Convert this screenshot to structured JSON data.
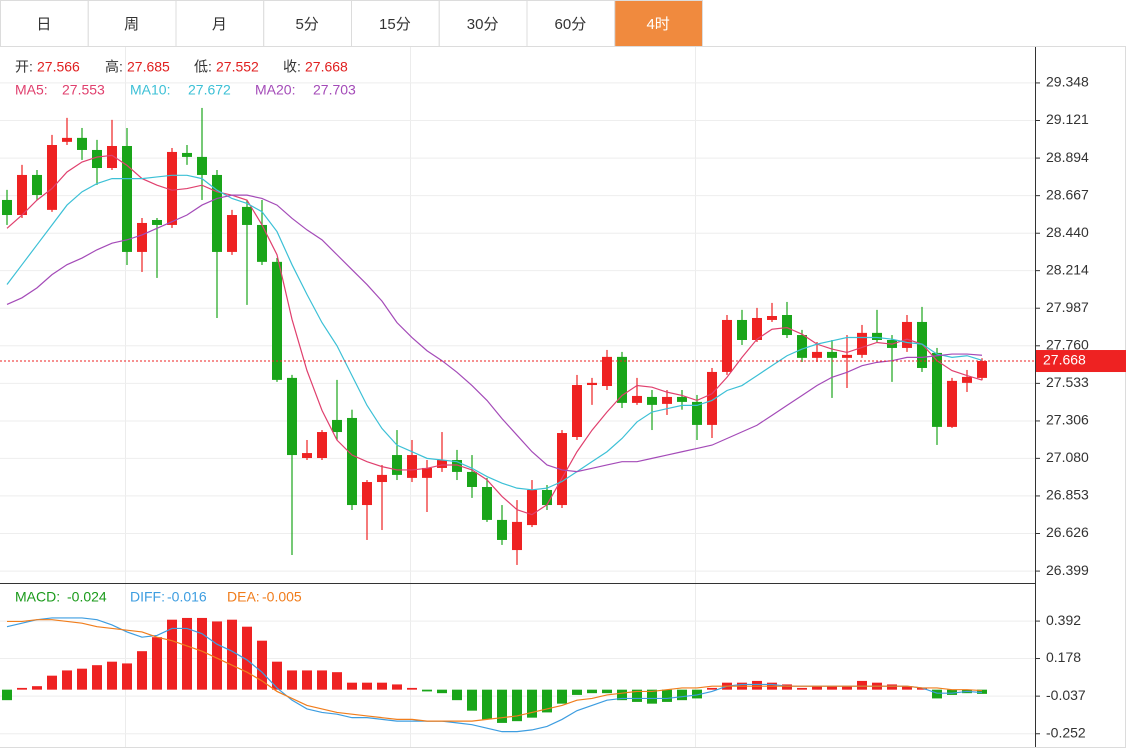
{
  "tabs": {
    "labels": [
      "日",
      "周",
      "月",
      "5分",
      "15分",
      "30分",
      "60分",
      "4时"
    ],
    "active": 7
  },
  "chart_data": {
    "type": "candlestick",
    "ohlc_labels": [
      "开:",
      "高:",
      "低:",
      "收:"
    ],
    "colors": {
      "up": "#ee2222",
      "down": "#1aa51a"
    },
    "open": [
      28.641,
      28.55,
      28.792,
      28.581,
      28.992,
      29.016,
      28.943,
      28.834,
      28.967,
      28.327,
      28.52,
      28.49,
      28.925,
      28.901,
      28.792,
      28.327,
      28.599,
      28.49,
      28.267,
      27.566,
      27.082,
      27.082,
      27.312,
      27.324,
      26.798,
      26.937,
      27.1,
      26.962,
      26.962,
      27.022,
      27.07,
      26.998,
      26.907,
      26.708,
      26.526,
      26.677,
      26.889,
      26.798,
      27.209,
      27.523,
      27.517,
      27.693,
      27.415,
      27.451,
      27.409,
      27.451,
      27.421,
      27.282,
      27.602,
      27.916,
      27.795,
      27.916,
      27.946,
      27.825,
      27.687,
      27.723,
      27.687,
      27.705,
      27.838,
      27.795,
      27.747,
      27.904,
      27.717,
      27.27,
      27.536,
      27.566
    ],
    "high": [
      28.702,
      28.853,
      28.822,
      29.034,
      29.137,
      29.076,
      29.004,
      29.125,
      29.076,
      28.532,
      28.532,
      28.955,
      28.973,
      29.197,
      28.822,
      28.581,
      28.641,
      28.641,
      28.291,
      27.584,
      27.191,
      27.251,
      27.554,
      27.374,
      26.949,
      27.04,
      27.251,
      27.191,
      27.07,
      27.239,
      27.131,
      27.1,
      26.962,
      26.798,
      26.828,
      26.949,
      26.919,
      27.251,
      27.584,
      27.566,
      27.735,
      27.723,
      27.566,
      27.493,
      27.493,
      27.493,
      27.463,
      27.626,
      27.946,
      27.977,
      27.989,
      28.019,
      28.025,
      27.856,
      27.783,
      27.795,
      27.825,
      27.886,
      27.977,
      27.825,
      27.946,
      27.995,
      27.747,
      27.566,
      27.614,
      27.685
    ],
    "low": [
      28.49,
      28.532,
      28.641,
      28.569,
      28.973,
      28.883,
      28.732,
      28.822,
      28.248,
      28.206,
      28.17,
      28.472,
      28.853,
      28.641,
      27.928,
      28.309,
      28.007,
      28.248,
      27.542,
      26.496,
      27.07,
      27.07,
      27.191,
      26.768,
      26.587,
      26.647,
      26.949,
      26.937,
      26.756,
      26.998,
      26.949,
      26.841,
      26.696,
      26.557,
      26.436,
      26.665,
      26.768,
      26.78,
      27.191,
      27.403,
      27.493,
      27.384,
      27.403,
      27.251,
      27.342,
      27.374,
      27.191,
      27.203,
      27.584,
      27.765,
      27.783,
      27.904,
      27.807,
      27.662,
      27.662,
      27.445,
      27.505,
      27.687,
      27.783,
      27.542,
      27.723,
      27.602,
      27.161,
      27.264,
      27.481,
      27.552
    ],
    "close": [
      28.55,
      28.792,
      28.671,
      28.973,
      29.016,
      28.943,
      28.834,
      28.967,
      28.327,
      28.502,
      28.49,
      28.931,
      28.901,
      28.792,
      28.327,
      28.55,
      28.49,
      28.267,
      27.554,
      27.1,
      27.112,
      27.239,
      27.239,
      26.798,
      26.937,
      26.98,
      26.98,
      27.1,
      27.022,
      27.07,
      26.998,
      26.907,
      26.708,
      26.587,
      26.696,
      26.889,
      26.798,
      27.233,
      27.523,
      27.536,
      27.693,
      27.415,
      27.457,
      27.403,
      27.451,
      27.421,
      27.282,
      27.602,
      27.916,
      27.795,
      27.928,
      27.94,
      27.825,
      27.687,
      27.723,
      27.687,
      27.705,
      27.838,
      27.795,
      27.747,
      27.904,
      27.626,
      27.27,
      27.548,
      27.572,
      27.668
    ],
    "ylim": [
      26.327,
      29.559
    ],
    "yticks": [
      26.399,
      26.626,
      26.853,
      {
        "value": 27.08,
        "label": "27.080"
      },
      27.306,
      27.533,
      {
        "value": 27.76,
        "label": "27.760"
      },
      27.987,
      28.214,
      {
        "value": 28.44,
        "label": "28.440"
      },
      28.667,
      28.894,
      29.121,
      29.348
    ],
    "grid": true,
    "ma": [
      {
        "name": "MA5:",
        "color": "#e0406e",
        "values": [
          28.47,
          28.55,
          28.64,
          28.71,
          28.81,
          28.87,
          28.9,
          28.91,
          28.85,
          28.77,
          28.73,
          28.7,
          28.71,
          28.73,
          28.69,
          28.67,
          28.64,
          28.49,
          28.31,
          27.92,
          27.61,
          27.37,
          27.19,
          27.1,
          27.06,
          27.03,
          27.01,
          27.01,
          27.02,
          27.04,
          27.04,
          27.01,
          26.95,
          26.85,
          26.77,
          26.74,
          26.8,
          26.96,
          27.12,
          27.25,
          27.36,
          27.46,
          27.52,
          27.51,
          27.48,
          27.46,
          27.43,
          27.47,
          27.57,
          27.69,
          27.8,
          27.86,
          27.87,
          27.83,
          27.77,
          27.74,
          27.72,
          27.75,
          27.78,
          27.77,
          27.8,
          27.77,
          27.67,
          27.61,
          27.58,
          27.553
        ]
      },
      {
        "name": "MA10:",
        "color": "#3cc0d6",
        "values": [
          28.13,
          28.25,
          28.37,
          28.49,
          28.61,
          28.69,
          28.74,
          28.77,
          28.77,
          28.77,
          28.78,
          28.79,
          28.79,
          28.77,
          28.7,
          28.65,
          28.62,
          28.57,
          28.45,
          28.25,
          28.07,
          27.9,
          27.76,
          27.58,
          27.4,
          27.26,
          27.16,
          27.12,
          27.08,
          27.07,
          27.06,
          27.02,
          26.97,
          26.93,
          26.9,
          26.89,
          26.9,
          26.94,
          27.0,
          27.06,
          27.12,
          27.2,
          27.3,
          27.36,
          27.38,
          27.4,
          27.4,
          27.43,
          27.49,
          27.52,
          27.58,
          27.64,
          27.7,
          27.74,
          27.77,
          27.79,
          27.81,
          27.81,
          27.81,
          27.8,
          27.78,
          27.77,
          27.71,
          27.69,
          27.7,
          27.672
        ]
      },
      {
        "name": "MA20:",
        "color": "#a44bb8",
        "values": [
          28.01,
          28.05,
          28.11,
          28.19,
          28.25,
          28.29,
          28.34,
          28.38,
          28.4,
          28.43,
          28.47,
          28.51,
          28.55,
          28.61,
          28.65,
          28.67,
          28.67,
          28.65,
          28.61,
          28.53,
          28.46,
          28.4,
          28.31,
          28.22,
          28.13,
          28.03,
          27.9,
          27.81,
          27.73,
          27.67,
          27.6,
          27.52,
          27.43,
          27.32,
          27.22,
          27.12,
          27.04,
          27.01,
          27.0,
          27.02,
          27.04,
          27.06,
          27.06,
          27.08,
          27.1,
          27.12,
          27.14,
          27.16,
          27.2,
          27.24,
          27.28,
          27.34,
          27.4,
          27.46,
          27.52,
          27.57,
          27.6,
          27.64,
          27.66,
          27.67,
          27.69,
          27.69,
          27.7,
          27.71,
          27.71,
          27.703
        ]
      }
    ],
    "macd": {
      "ylim": [
        -0.322,
        0.604
      ],
      "yticks": [
        -0.252,
        -0.037,
        0.178,
        0.392
      ],
      "hist": {
        "name": "MACD:",
        "color": "#1a9a1a",
        "values": [
          -0.06,
          0.01,
          0.02,
          0.08,
          0.11,
          0.12,
          0.14,
          0.16,
          0.15,
          0.22,
          0.3,
          0.4,
          0.41,
          0.41,
          0.39,
          0.4,
          0.36,
          0.28,
          0.16,
          0.11,
          0.11,
          0.11,
          0.1,
          0.04,
          0.04,
          0.04,
          0.03,
          0.01,
          -0.01,
          -0.02,
          -0.06,
          -0.12,
          -0.17,
          -0.19,
          -0.18,
          -0.16,
          -0.13,
          -0.08,
          -0.03,
          -0.02,
          -0.02,
          -0.06,
          -0.07,
          -0.08,
          -0.07,
          -0.06,
          -0.05,
          0.01,
          0.04,
          0.04,
          0.05,
          0.04,
          0.03,
          0.01,
          0.02,
          0.02,
          0.02,
          0.05,
          0.04,
          0.03,
          0.02,
          0.01,
          -0.05,
          -0.03,
          -0.02,
          -0.024
        ]
      },
      "lines": [
        {
          "name": "DIFF:",
          "color": "#3d9de0",
          "values": [
            0.36,
            0.38,
            0.4,
            0.41,
            0.41,
            0.41,
            0.4,
            0.37,
            0.33,
            0.3,
            0.31,
            0.35,
            0.35,
            0.32,
            0.26,
            0.22,
            0.17,
            0.1,
            0.01,
            -0.06,
            -0.11,
            -0.13,
            -0.14,
            -0.16,
            -0.16,
            -0.17,
            -0.18,
            -0.18,
            -0.18,
            -0.18,
            -0.19,
            -0.2,
            -0.22,
            -0.24,
            -0.24,
            -0.23,
            -0.21,
            -0.17,
            -0.12,
            -0.09,
            -0.06,
            -0.05,
            -0.05,
            -0.05,
            -0.05,
            -0.04,
            -0.03,
            -0.01,
            0.02,
            0.03,
            0.03,
            0.03,
            0.02,
            0.02,
            0.02,
            0.02,
            0.02,
            0.02,
            0.02,
            0.02,
            0.02,
            0.01,
            -0.02,
            -0.02,
            -0.01,
            -0.016
          ]
        },
        {
          "name": "DEA:",
          "color": "#f07d1c",
          "values": [
            0.39,
            0.39,
            0.4,
            0.4,
            0.39,
            0.38,
            0.36,
            0.35,
            0.34,
            0.33,
            0.3,
            0.28,
            0.25,
            0.22,
            0.18,
            0.14,
            0.1,
            0.05,
            -0.01,
            -0.05,
            -0.09,
            -0.11,
            -0.13,
            -0.14,
            -0.15,
            -0.16,
            -0.17,
            -0.17,
            -0.18,
            -0.18,
            -0.18,
            -0.18,
            -0.17,
            -0.16,
            -0.15,
            -0.13,
            -0.11,
            -0.09,
            -0.06,
            -0.05,
            -0.03,
            -0.02,
            -0.01,
            -0.01,
            0.0,
            0.01,
            0.01,
            0.02,
            0.02,
            0.02,
            0.02,
            0.02,
            0.02,
            0.02,
            0.02,
            0.02,
            0.02,
            0.02,
            0.02,
            0.02,
            0.02,
            0.01,
            0.01,
            0.0,
            0.0,
            -0.005
          ]
        }
      ]
    }
  }
}
